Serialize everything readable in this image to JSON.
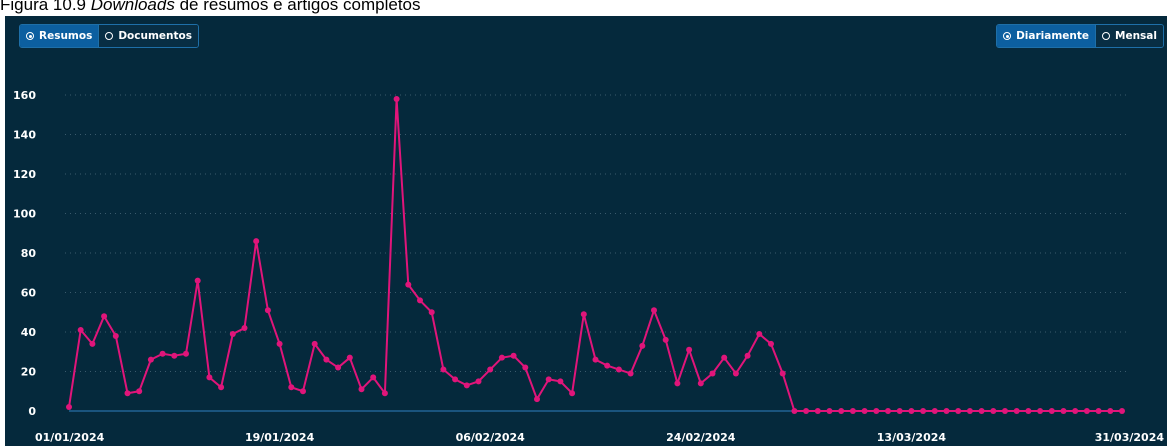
{
  "caption": {
    "prefix": "Figura 10.9 ",
    "emph": "Downloads",
    "rest": " de resumos e artigos completos"
  },
  "left_toggle": {
    "options": [
      {
        "label": "Resumos",
        "active": true
      },
      {
        "label": "Documentos",
        "active": false
      }
    ]
  },
  "right_toggle": {
    "options": [
      {
        "label": "Diariamente",
        "active": true
      },
      {
        "label": "Mensal",
        "active": false
      }
    ]
  },
  "colors": {
    "background": "#05293c",
    "line": "#e0157a",
    "baseline": "#2f7fc1",
    "grid": "#3a5a6c"
  },
  "chart_data": {
    "type": "line",
    "title": "",
    "xlabel": "",
    "ylabel": "",
    "ylim": [
      0,
      160
    ],
    "yticks": [
      0,
      20,
      40,
      60,
      80,
      100,
      120,
      140,
      160
    ],
    "x_tick_labels": [
      "01/01/2024",
      "19/01/2024",
      "06/02/2024",
      "24/02/2024",
      "13/03/2024",
      "31/03/2024"
    ],
    "x_tick_indices": [
      0,
      18,
      36,
      54,
      72,
      90
    ],
    "grid": "horizontal dotted",
    "series": [
      {
        "values": [
          2,
          41,
          34,
          48,
          38,
          9,
          10,
          26,
          29,
          28,
          29,
          66,
          17,
          12,
          39,
          42,
          86,
          51,
          34,
          12,
          10,
          34,
          26,
          22,
          27,
          11,
          17,
          9,
          158,
          64,
          56,
          50,
          21,
          16,
          13,
          15,
          21,
          27,
          28,
          22,
          6,
          16,
          15,
          9,
          49,
          26,
          23,
          21,
          19,
          33,
          51,
          36,
          14,
          31,
          14,
          19,
          27,
          19,
          28,
          39,
          34,
          19,
          0,
          0,
          0,
          0,
          0,
          0,
          0,
          0,
          0,
          0,
          0,
          0,
          0,
          0,
          0,
          0,
          0,
          0,
          0,
          0,
          0,
          0,
          0,
          0,
          0,
          0,
          0,
          0,
          0
        ]
      }
    ]
  }
}
